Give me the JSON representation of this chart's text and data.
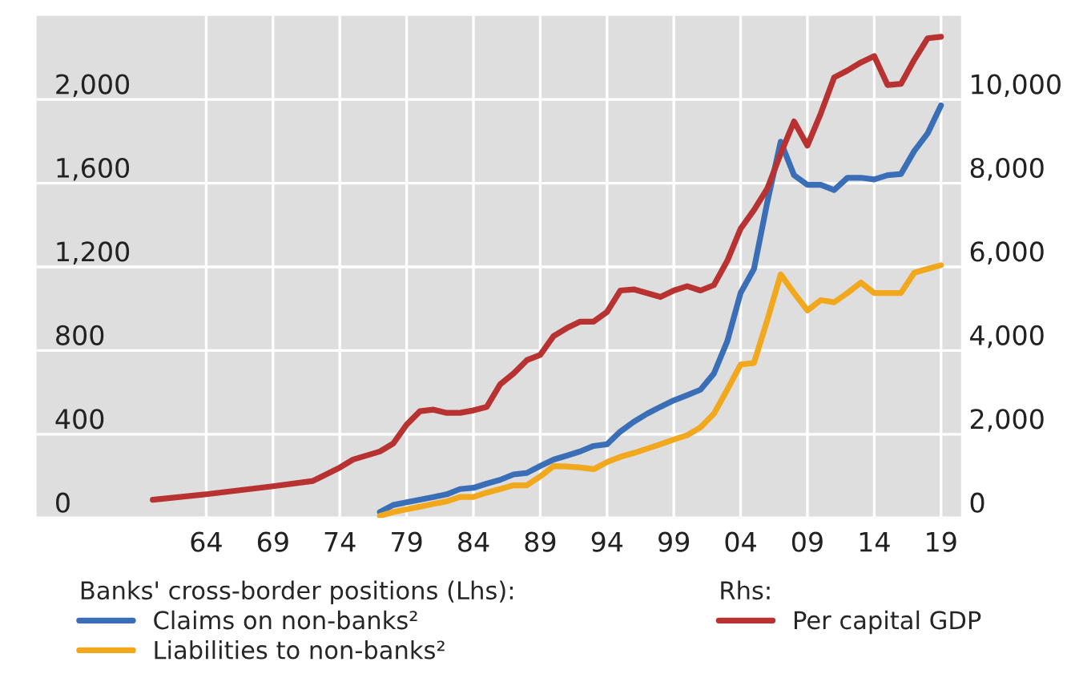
{
  "chart_data": {
    "type": "line",
    "xlim": [
      1951.3,
      2020.5
    ],
    "xticks": [
      {
        "value": 1964,
        "label": "64"
      },
      {
        "value": 1969,
        "label": "69"
      },
      {
        "value": 1974,
        "label": "74"
      },
      {
        "value": 1979,
        "label": "79"
      },
      {
        "value": 1984,
        "label": "84"
      },
      {
        "value": 1989,
        "label": "89"
      },
      {
        "value": 1994,
        "label": "94"
      },
      {
        "value": 1999,
        "label": "99"
      },
      {
        "value": 2004,
        "label": "04"
      },
      {
        "value": 2009,
        "label": "09"
      },
      {
        "value": 2014,
        "label": "14"
      },
      {
        "value": 2019,
        "label": "19"
      }
    ],
    "ylim": [
      0,
      2400
    ],
    "yticks": [
      0,
      {
        "value": 400,
        "label": "400"
      },
      {
        "value": 800,
        "label": "800"
      },
      {
        "value": 1200,
        "label": "1,200"
      },
      {
        "value": 1600,
        "label": "1,600"
      },
      {
        "value": 2000,
        "label": "2,000"
      }
    ],
    "y2lim": [
      0,
      12000
    ],
    "y2ticks": [
      0,
      {
        "value": 2000,
        "label": "2,000"
      },
      {
        "value": 4000,
        "label": "4,000"
      },
      {
        "value": 6000,
        "label": "6,000"
      },
      {
        "value": 8000,
        "label": "8,000"
      },
      {
        "value": 10000,
        "label": "10,000"
      }
    ],
    "grid": true,
    "legend": "bottom",
    "legend_title": [
      "Banks' cross-border positions (Lhs):",
      "Rhs:"
    ],
    "series": [
      {
        "name": "Claims on non-banks²",
        "color": "#3a6fb7",
        "x": [
          1977,
          1978,
          1979,
          1980,
          1981,
          1982,
          1983,
          1984,
          1985,
          1986,
          1987,
          1988,
          1989,
          1990,
          1991,
          1992,
          1993,
          1994,
          1995,
          1996,
          1997,
          1998,
          1999,
          2000,
          2001,
          2002,
          2003,
          2004,
          2005,
          2006,
          2007,
          2008,
          2009,
          2010,
          2011,
          2012,
          2013,
          2014,
          2015,
          2016,
          2017,
          2018,
          2019
        ],
        "values": [
          28,
          62,
          75,
          87,
          100,
          113,
          138,
          144,
          164,
          182,
          208,
          215,
          248,
          279,
          298,
          318,
          344,
          352,
          413,
          459,
          498,
          531,
          562,
          587,
          613,
          690,
          844,
          1075,
          1190,
          1510,
          1798,
          1638,
          1592,
          1592,
          1567,
          1626,
          1626,
          1618,
          1638,
          1644,
          1754,
          1838,
          1972
        ]
      },
      {
        "name": "Liabilities to non-banks²",
        "color": "#f2a81d",
        "x": [
          1977,
          1978,
          1979,
          1980,
          1981,
          1982,
          1983,
          1984,
          1985,
          1986,
          1987,
          1988,
          1989,
          1990,
          1991,
          1992,
          1993,
          1994,
          1995,
          1996,
          1997,
          1998,
          1999,
          2000,
          2001,
          2002,
          2003,
          2004,
          2005,
          2006,
          2007,
          2008,
          2009,
          2010,
          2011,
          2012,
          2013,
          2014,
          2015,
          2016,
          2017,
          2018,
          2019
        ],
        "values": [
          10,
          28,
          41,
          54,
          67,
          79,
          100,
          100,
          121,
          138,
          156,
          156,
          198,
          248,
          246,
          241,
          233,
          267,
          292,
          310,
          331,
          352,
          375,
          395,
          433,
          498,
          613,
          733,
          741,
          946,
          1164,
          1075,
          992,
          1041,
          1031,
          1075,
          1125,
          1075,
          1075,
          1075,
          1172,
          1190,
          1208
        ]
      },
      {
        "name": "Per capital GDP",
        "color": "#b83232",
        "axis": "y2",
        "x": [
          1960,
          1964,
          1969,
          1972,
          1974,
          1975,
          1977,
          1978,
          1979,
          1980,
          1981,
          1982,
          1983,
          1984,
          1985,
          1986,
          1987,
          1988,
          1989,
          1990,
          1991,
          1992,
          1993,
          1994,
          1995,
          1996,
          1997,
          1998,
          1999,
          2000,
          2001,
          2002,
          2003,
          2004,
          2005,
          2006,
          2007,
          2008,
          2009,
          2010,
          2011,
          2012,
          2013,
          2014,
          2015,
          2016,
          2017,
          2018,
          2019
        ],
        "values": [
          435,
          565,
          757,
          885,
          1204,
          1396,
          1588,
          1780,
          2230,
          2550,
          2588,
          2511,
          2511,
          2570,
          2654,
          3192,
          3450,
          3769,
          3896,
          4346,
          4538,
          4692,
          4692,
          4923,
          5435,
          5462,
          5373,
          5281,
          5435,
          5538,
          5435,
          5564,
          6142,
          6911,
          7358,
          7872,
          8705,
          9474,
          8897,
          9666,
          10526,
          10692,
          10885,
          11038,
          10346,
          10372,
          10949,
          11462,
          11500
        ]
      }
    ]
  }
}
